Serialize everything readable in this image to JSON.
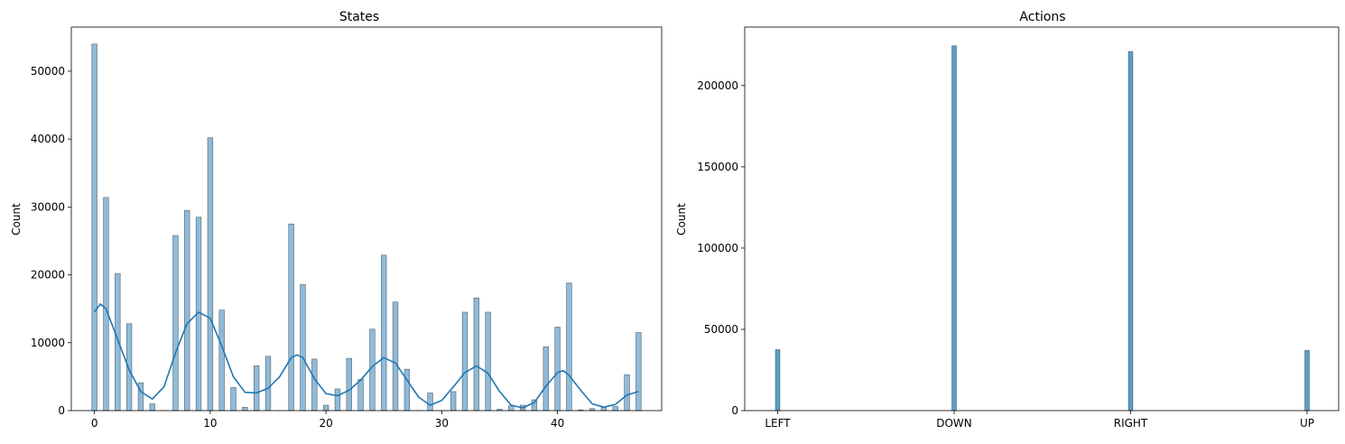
{
  "colors": {
    "bar_fill": "#1f77b4",
    "kde_line": "#1f77b4"
  },
  "chart_data": [
    {
      "type": "bar",
      "title": "States",
      "xlabel": "",
      "ylabel": "Count",
      "xlim": [
        -2,
        49
      ],
      "ylim": [
        0,
        56500
      ],
      "xticks": [
        0,
        10,
        20,
        30,
        40
      ],
      "yticks": [
        0,
        10000,
        20000,
        30000,
        40000,
        50000
      ],
      "kde": true,
      "x": [
        0,
        1,
        2,
        3,
        4,
        5,
        6,
        7,
        8,
        9,
        10,
        11,
        12,
        13,
        14,
        15,
        16,
        17,
        18,
        19,
        20,
        21,
        22,
        23,
        24,
        25,
        26,
        27,
        28,
        29,
        30,
        31,
        32,
        33,
        34,
        35,
        36,
        37,
        38,
        39,
        40,
        41,
        42,
        43,
        44,
        45,
        46,
        47
      ],
      "values": [
        54000,
        31400,
        20200,
        12800,
        4100,
        1000,
        0,
        25800,
        29500,
        28500,
        40200,
        14800,
        3400,
        500,
        6600,
        8000,
        0,
        27500,
        18600,
        7600,
        800,
        3200,
        7700,
        4600,
        12000,
        22900,
        16000,
        6100,
        0,
        2600,
        0,
        2800,
        14500,
        16600,
        14500,
        200,
        700,
        800,
        1600,
        9400,
        12300,
        18800,
        100,
        300,
        500,
        600,
        5300,
        11500
      ],
      "kde_points": [
        [
          0,
          14500
        ],
        [
          0.5,
          15700
        ],
        [
          1,
          15000
        ],
        [
          2,
          10500
        ],
        [
          3,
          6000
        ],
        [
          4,
          2800
        ],
        [
          5,
          1700
        ],
        [
          6,
          3500
        ],
        [
          7,
          8500
        ],
        [
          8,
          12800
        ],
        [
          9,
          14500
        ],
        [
          10,
          13600
        ],
        [
          11,
          9500
        ],
        [
          12,
          5000
        ],
        [
          13,
          2700
        ],
        [
          14,
          2600
        ],
        [
          15,
          3300
        ],
        [
          16,
          5000
        ],
        [
          17,
          7800
        ],
        [
          17.5,
          8200
        ],
        [
          18,
          7800
        ],
        [
          19,
          4700
        ],
        [
          20,
          2500
        ],
        [
          21,
          2200
        ],
        [
          22,
          3000
        ],
        [
          23,
          4500
        ],
        [
          24,
          6500
        ],
        [
          25,
          7800
        ],
        [
          26,
          7000
        ],
        [
          27,
          4500
        ],
        [
          28,
          2000
        ],
        [
          29,
          800
        ],
        [
          30,
          1500
        ],
        [
          31,
          3500
        ],
        [
          32,
          5600
        ],
        [
          33,
          6600
        ],
        [
          34,
          5500
        ],
        [
          35,
          2800
        ],
        [
          36,
          800
        ],
        [
          37,
          400
        ],
        [
          38,
          1200
        ],
        [
          39,
          3600
        ],
        [
          40,
          5600
        ],
        [
          40.5,
          5900
        ],
        [
          41,
          5200
        ],
        [
          42,
          3000
        ],
        [
          43,
          1000
        ],
        [
          44,
          500
        ],
        [
          45,
          900
        ],
        [
          46,
          2300
        ],
        [
          47,
          2800
        ]
      ]
    },
    {
      "type": "bar",
      "title": "Actions",
      "xlabel": "",
      "ylabel": "Count",
      "ylim": [
        0,
        236000
      ],
      "yticks": [
        0,
        50000,
        100000,
        150000,
        200000
      ],
      "categories": [
        "LEFT",
        "DOWN",
        "RIGHT",
        "UP"
      ],
      "values": [
        37500,
        224500,
        221000,
        37000
      ]
    }
  ]
}
